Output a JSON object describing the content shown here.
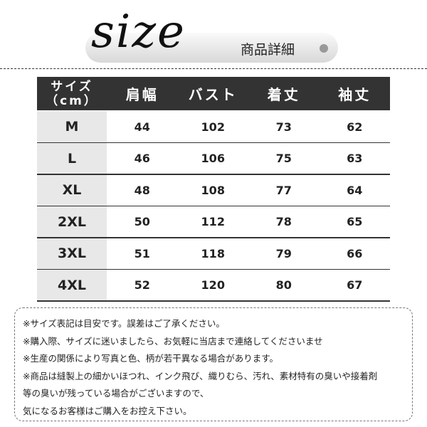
{
  "header": {
    "title": "size",
    "subtitle": "商品詳細"
  },
  "table": {
    "corner": [
      "サイズ",
      "（cm）"
    ],
    "columns": [
      "肩幅",
      "バスト",
      "着丈",
      "袖丈"
    ],
    "rows": [
      [
        "M",
        44,
        102,
        73,
        62
      ],
      [
        "L",
        46,
        106,
        75,
        63
      ],
      [
        "XL",
        48,
        108,
        77,
        64
      ],
      [
        "2XL",
        50,
        112,
        78,
        65
      ],
      [
        "3XL",
        51,
        118,
        79,
        66
      ],
      [
        "4XL",
        52,
        120,
        80,
        67
      ]
    ]
  },
  "notes": [
    "※サイズ表記は目安です。誤差はご了承ください。",
    "※購入際、サイズに迷いましたら、お気軽に当店まで連絡してくださいませ",
    "※生産の関係により写真と色、柄が若干異なる場合があります。",
    "※商品は縫製上の細かいほつれ、インク飛び、織りむら、汚れ、素材特有の臭いや接着剤",
    "等の臭いが残っている場合がございますので、",
    "気になるお客様はご購入をお控え下さい。"
  ]
}
